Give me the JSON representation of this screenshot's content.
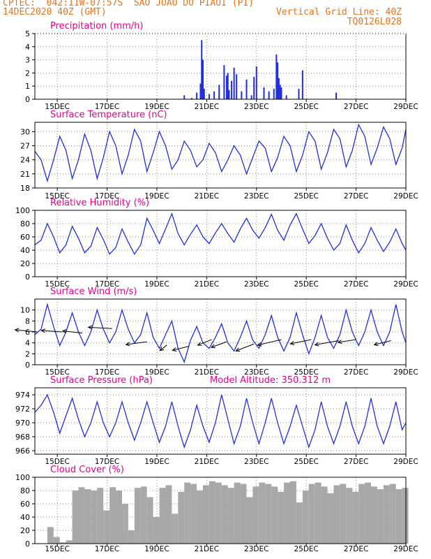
{
  "header": {
    "line1_left": "CPTEC:  042:11W-07:57S  SAO JOAO DO PIAUI (PI)",
    "line2_left": "14DEC2020 40Z (GMT)",
    "line2_right": "Vertical Grid Line: 40Z",
    "line3_right": "TQ0126L028"
  },
  "colors": {
    "header": "#e8731a",
    "title": "#e6008c",
    "series": "#1f2fe0",
    "bars": "#1f2fe0",
    "cloud": "#a8a8a8",
    "axis": "#000000"
  },
  "x_tick_labels": [
    "15DEC",
    "17DEC",
    "19DEC",
    "21DEC",
    "23DEC",
    "25DEC",
    "27DEC",
    "29DEC"
  ],
  "chart_data": [
    {
      "type": "bar",
      "title": "Precipitation (mm/h)",
      "ylim": [
        0,
        5
      ],
      "yticks": [
        0,
        1,
        2,
        3,
        4,
        5
      ],
      "x_days_range": [
        14.1,
        29.0
      ],
      "x": [
        20.1,
        20.4,
        20.6,
        20.75,
        20.8,
        20.85,
        20.9,
        21.1,
        21.3,
        21.5,
        21.7,
        21.8,
        21.85,
        21.9,
        22.0,
        22.1,
        22.2,
        22.4,
        22.6,
        22.8,
        22.9,
        23.0,
        23.3,
        23.5,
        23.7,
        23.8,
        23.85,
        23.9,
        23.95,
        24.0,
        24.2,
        24.7,
        24.85,
        26.2
      ],
      "values": [
        0.3,
        0.1,
        0.5,
        1.2,
        4.5,
        3.0,
        0.8,
        0.4,
        0.6,
        1.1,
        2.6,
        1.8,
        2.0,
        0.7,
        1.4,
        2.4,
        1.9,
        0.6,
        1.5,
        0.3,
        1.7,
        2.5,
        0.9,
        0.6,
        0.8,
        3.4,
        2.8,
        1.6,
        1.1,
        0.9,
        0.3,
        0.8,
        2.2,
        0.5
      ],
      "grid": true
    },
    {
      "type": "line",
      "title": "Surface Temperature (nC)",
      "ylim": [
        18,
        32
      ],
      "yticks": [
        18,
        21,
        24,
        27,
        30
      ],
      "x": [
        14.1,
        14.35,
        14.6,
        14.85,
        15.1,
        15.35,
        15.6,
        15.85,
        16.1,
        16.35,
        16.6,
        16.85,
        17.1,
        17.35,
        17.6,
        17.85,
        18.1,
        18.35,
        18.6,
        18.85,
        19.1,
        19.35,
        19.6,
        19.85,
        20.1,
        20.35,
        20.6,
        20.85,
        21.1,
        21.35,
        21.6,
        21.85,
        22.1,
        22.35,
        22.6,
        22.85,
        23.1,
        23.35,
        23.6,
        23.85,
        24.1,
        24.35,
        24.6,
        24.85,
        25.1,
        25.35,
        25.6,
        25.85,
        26.1,
        26.35,
        26.6,
        26.85,
        27.1,
        27.35,
        27.6,
        27.85,
        28.1,
        28.35,
        28.6,
        28.85,
        29.0
      ],
      "values": [
        25.8,
        24,
        19.5,
        24,
        29,
        26,
        20,
        24,
        29.5,
        26,
        20,
        24.5,
        30,
        27,
        21,
        25,
        30.5,
        28,
        21.5,
        25.5,
        30,
        27,
        22,
        24,
        28,
        26,
        22.5,
        24,
        27.5,
        25.5,
        21.5,
        24,
        27,
        25,
        21,
        24.5,
        28,
        26.5,
        21.5,
        24.5,
        29,
        27,
        21.5,
        25,
        30,
        28,
        22,
        25.5,
        30.5,
        28.5,
        22.5,
        26,
        31.5,
        29,
        23,
        26.5,
        31,
        28.5,
        23,
        26.5,
        30.5
      ],
      "grid": true
    },
    {
      "type": "line",
      "title": "Relative Humidity (%)",
      "ylim": [
        0,
        100
      ],
      "yticks": [
        0,
        20,
        40,
        60,
        80,
        100
      ],
      "x": [
        14.1,
        14.35,
        14.6,
        14.85,
        15.1,
        15.35,
        15.6,
        15.85,
        16.1,
        16.35,
        16.6,
        16.85,
        17.1,
        17.35,
        17.6,
        17.85,
        18.1,
        18.35,
        18.6,
        18.85,
        19.1,
        19.35,
        19.6,
        19.85,
        20.1,
        20.35,
        20.6,
        20.85,
        21.1,
        21.35,
        21.6,
        21.85,
        22.1,
        22.35,
        22.6,
        22.85,
        23.1,
        23.35,
        23.6,
        23.85,
        24.1,
        24.35,
        24.6,
        24.85,
        25.1,
        25.35,
        25.6,
        25.85,
        26.1,
        26.35,
        26.6,
        26.85,
        27.1,
        27.35,
        27.6,
        27.85,
        28.1,
        28.35,
        28.6,
        28.85,
        29.0
      ],
      "values": [
        48,
        55,
        80,
        60,
        36,
        48,
        76,
        58,
        36,
        46,
        74,
        56,
        34,
        44,
        72,
        52,
        34,
        48,
        88,
        70,
        50,
        72,
        95,
        65,
        48,
        64,
        78,
        60,
        50,
        66,
        80,
        65,
        52,
        72,
        88,
        70,
        58,
        74,
        94,
        70,
        55,
        78,
        95,
        72,
        50,
        62,
        80,
        58,
        40,
        50,
        78,
        55,
        36,
        50,
        74,
        55,
        38,
        52,
        72,
        50,
        40
      ],
      "grid": true
    },
    {
      "type": "line",
      "title": "Surface Wind (m/s)",
      "ylim": [
        0,
        12
      ],
      "yticks": [
        0,
        2,
        4,
        6,
        8,
        10
      ],
      "x": [
        14.1,
        14.35,
        14.6,
        14.85,
        15.1,
        15.35,
        15.6,
        15.85,
        16.1,
        16.35,
        16.6,
        16.85,
        17.1,
        17.35,
        17.6,
        17.85,
        18.1,
        18.35,
        18.6,
        18.85,
        19.1,
        19.35,
        19.6,
        19.85,
        20.1,
        20.35,
        20.6,
        20.85,
        21.1,
        21.35,
        21.6,
        21.85,
        22.1,
        22.35,
        22.6,
        22.85,
        23.1,
        23.35,
        23.6,
        23.85,
        24.1,
        24.35,
        24.6,
        24.85,
        25.1,
        25.35,
        25.6,
        25.85,
        26.1,
        26.35,
        26.6,
        26.85,
        27.1,
        27.35,
        27.6,
        27.85,
        28.1,
        28.35,
        28.6,
        28.85,
        29.0
      ],
      "values": [
        5.5,
        6.5,
        11,
        7,
        3.5,
        6,
        9.5,
        6,
        3.5,
        6,
        10,
        6.5,
        4,
        6,
        10,
        6.5,
        4,
        5.5,
        9.5,
        5,
        3,
        5.5,
        8,
        3,
        0.5,
        4.5,
        7,
        4,
        3,
        5,
        7.5,
        4,
        2.5,
        5,
        8,
        4.5,
        3,
        5.5,
        9,
        5,
        2.5,
        5,
        9.5,
        5.5,
        2,
        5,
        9,
        5,
        3,
        5.5,
        10,
        6,
        3.5,
        6,
        10,
        6,
        3.5,
        6,
        11,
        6,
        4
      ],
      "grid": true
    },
    {
      "type": "line",
      "title": "Surface Pressure (hPa)",
      "annotation": "Model Altitude: 350.312 m",
      "ylim": [
        965.5,
        975
      ],
      "yticks": [
        966,
        968,
        970,
        972,
        974
      ],
      "x": [
        14.1,
        14.35,
        14.6,
        14.85,
        15.1,
        15.35,
        15.6,
        15.85,
        16.1,
        16.35,
        16.6,
        16.85,
        17.1,
        17.35,
        17.6,
        17.85,
        18.1,
        18.35,
        18.6,
        18.85,
        19.1,
        19.35,
        19.6,
        19.85,
        20.1,
        20.35,
        20.6,
        20.85,
        21.1,
        21.35,
        21.6,
        21.85,
        22.1,
        22.35,
        22.6,
        22.85,
        23.1,
        23.35,
        23.6,
        23.85,
        24.1,
        24.35,
        24.6,
        24.85,
        25.1,
        25.35,
        25.6,
        25.85,
        26.1,
        26.35,
        26.6,
        26.85,
        27.1,
        27.35,
        27.6,
        27.85,
        28.1,
        28.35,
        28.6,
        28.85,
        29.0
      ],
      "values": [
        971.5,
        972.5,
        974,
        971.5,
        968.5,
        971,
        973.5,
        970.5,
        968,
        970,
        973,
        970,
        968,
        970,
        973,
        970,
        967.5,
        970,
        973,
        970,
        967.2,
        969.5,
        973,
        969.5,
        966.5,
        969,
        972.5,
        969.5,
        967.2,
        970,
        974,
        970.5,
        967,
        969.5,
        973.5,
        970,
        967,
        970,
        973.5,
        970,
        967,
        969.5,
        972.5,
        969.5,
        966.5,
        969,
        973,
        969.5,
        967,
        969.5,
        973,
        969.5,
        967,
        969.5,
        973.5,
        969.5,
        967,
        969.5,
        973,
        969,
        970
      ],
      "grid": true
    },
    {
      "type": "bar",
      "title": "Cloud Cover (%)",
      "ylim": [
        0,
        100
      ],
      "yticks": [
        0,
        20,
        40,
        60,
        80,
        100
      ],
      "x": [
        14.1,
        14.35,
        14.6,
        14.85,
        15.1,
        15.35,
        15.6,
        15.85,
        16.1,
        16.35,
        16.6,
        16.85,
        17.1,
        17.35,
        17.6,
        17.85,
        18.1,
        18.35,
        18.6,
        18.85,
        19.1,
        19.35,
        19.6,
        19.85,
        20.1,
        20.35,
        20.6,
        20.85,
        21.1,
        21.35,
        21.6,
        21.85,
        22.1,
        22.35,
        22.6,
        22.85,
        23.1,
        23.35,
        23.6,
        23.85,
        24.1,
        24.35,
        24.6,
        24.85,
        25.1,
        25.35,
        25.6,
        25.85,
        26.1,
        26.35,
        26.6,
        26.85,
        27.1,
        27.35,
        27.6,
        27.85,
        28.1,
        28.35,
        28.6,
        28.85,
        29.0
      ],
      "values": [
        0,
        0,
        25,
        10,
        2,
        5,
        80,
        85,
        82,
        80,
        84,
        50,
        85,
        80,
        60,
        20,
        84,
        86,
        70,
        40,
        84,
        88,
        45,
        78,
        92,
        90,
        80,
        88,
        94,
        92,
        88,
        84,
        92,
        90,
        70,
        86,
        92,
        90,
        86,
        78,
        92,
        94,
        62,
        80,
        90,
        92,
        86,
        76,
        88,
        90,
        84,
        78,
        90,
        92,
        86,
        82,
        88,
        90,
        82,
        84,
        86
      ],
      "grid": true
    }
  ]
}
